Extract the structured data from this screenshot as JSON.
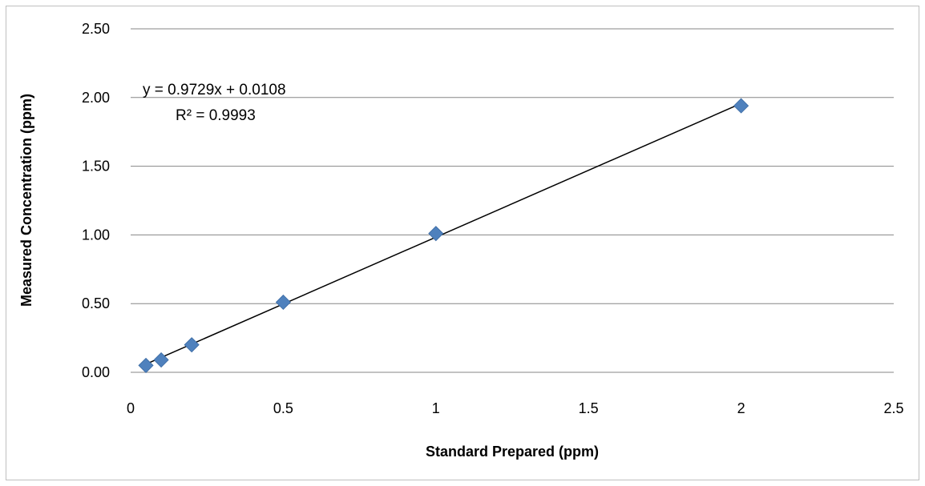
{
  "chart_data": {
    "type": "scatter",
    "title": "",
    "xlabel": "Standard Prepared (ppm)",
    "ylabel": "Measured Concentration (ppm)",
    "xlim": [
      0,
      2.5
    ],
    "ylim": [
      0,
      2.5
    ],
    "x_ticks": [
      "0",
      "0.5",
      "1",
      "1.5",
      "2",
      "2.5"
    ],
    "y_ticks": [
      "0.00",
      "0.50",
      "1.00",
      "1.50",
      "2.00",
      "2.50"
    ],
    "grid": "horizontal",
    "legend": "none",
    "series": [
      {
        "marker": "diamond",
        "color": "#4f81bd",
        "points": [
          {
            "x": 0.05,
            "y": 0.05
          },
          {
            "x": 0.1,
            "y": 0.09
          },
          {
            "x": 0.2,
            "y": 0.2
          },
          {
            "x": 0.5,
            "y": 0.51
          },
          {
            "x": 1,
            "y": 1.01
          },
          {
            "x": 2,
            "y": 1.94
          }
        ]
      }
    ],
    "trendline": {
      "type": "linear",
      "slope": 0.9729,
      "intercept": 0.0108,
      "x_range": [
        0.05,
        2
      ],
      "color": "#000000",
      "equation": "y = 0.9729x + 0.0108",
      "r_squared": "R² = 0.9993"
    },
    "annotations": [
      "y = 0.9729x + 0.0108",
      "R² = 0.9993"
    ]
  }
}
